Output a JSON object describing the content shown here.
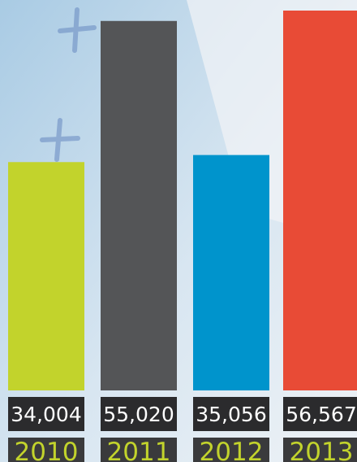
{
  "chart_data": {
    "type": "bar",
    "categories": [
      "2010",
      "2011",
      "2012",
      "2013"
    ],
    "values": [
      34004,
      55020,
      35056,
      56567
    ],
    "value_labels": [
      "34,004",
      "55,020",
      "35,056",
      "56,567"
    ],
    "colors": [
      "#c2d32c",
      "#545557",
      "#0094cc",
      "#e84b36"
    ]
  }
}
